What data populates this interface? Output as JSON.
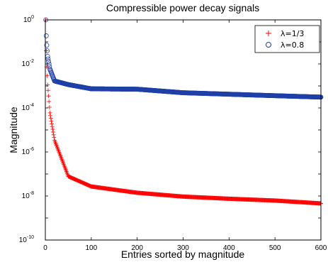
{
  "chart_data": {
    "type": "scatter",
    "title": "Compressible power decay signals",
    "xlabel": "Entries sorted by magnitude",
    "ylabel": "Magnitude",
    "xlim": [
      0,
      600
    ],
    "ylim": [
      1e-10,
      1
    ],
    "yscale": "log",
    "xticks": [
      "0",
      "100",
      "200",
      "300",
      "400",
      "500",
      "600"
    ],
    "yticks": [
      {
        "base": "10",
        "exp": "-10"
      },
      {
        "base": "10",
        "exp": "-8"
      },
      {
        "base": "10",
        "exp": "-6"
      },
      {
        "base": "10",
        "exp": "-4"
      },
      {
        "base": "10",
        "exp": "-2"
      },
      {
        "base": "10",
        "exp": "0"
      }
    ],
    "grid": false,
    "legend_position": "top-right",
    "series": [
      {
        "name": "λ=1/3",
        "marker": "plus",
        "color": "#ff0000",
        "x": [
          1,
          2,
          3,
          5,
          10,
          20,
          50,
          100,
          200,
          300,
          400,
          500,
          600
        ],
        "values": [
          1,
          0.0397,
          0.00731,
          0.00113,
          6e-05,
          3.4e-06,
          7.8e-08,
          2.7e-08,
          1.4e-08,
          9.4e-09,
          7.5e-09,
          6.2e-09,
          4.6e-09
        ]
      },
      {
        "name": "λ=0.8",
        "marker": "circle",
        "color": "#1f3fa8",
        "x": [
          1,
          2,
          3,
          5,
          10,
          20,
          50,
          100,
          200,
          300,
          400,
          500,
          600
        ],
        "values": [
          1,
          0.189,
          0.0711,
          0.022,
          0.00581,
          0.00168,
          0.00115,
          0.00074,
          0.00071,
          0.00049,
          0.00042,
          0.00036,
          0.00031
        ]
      }
    ]
  }
}
